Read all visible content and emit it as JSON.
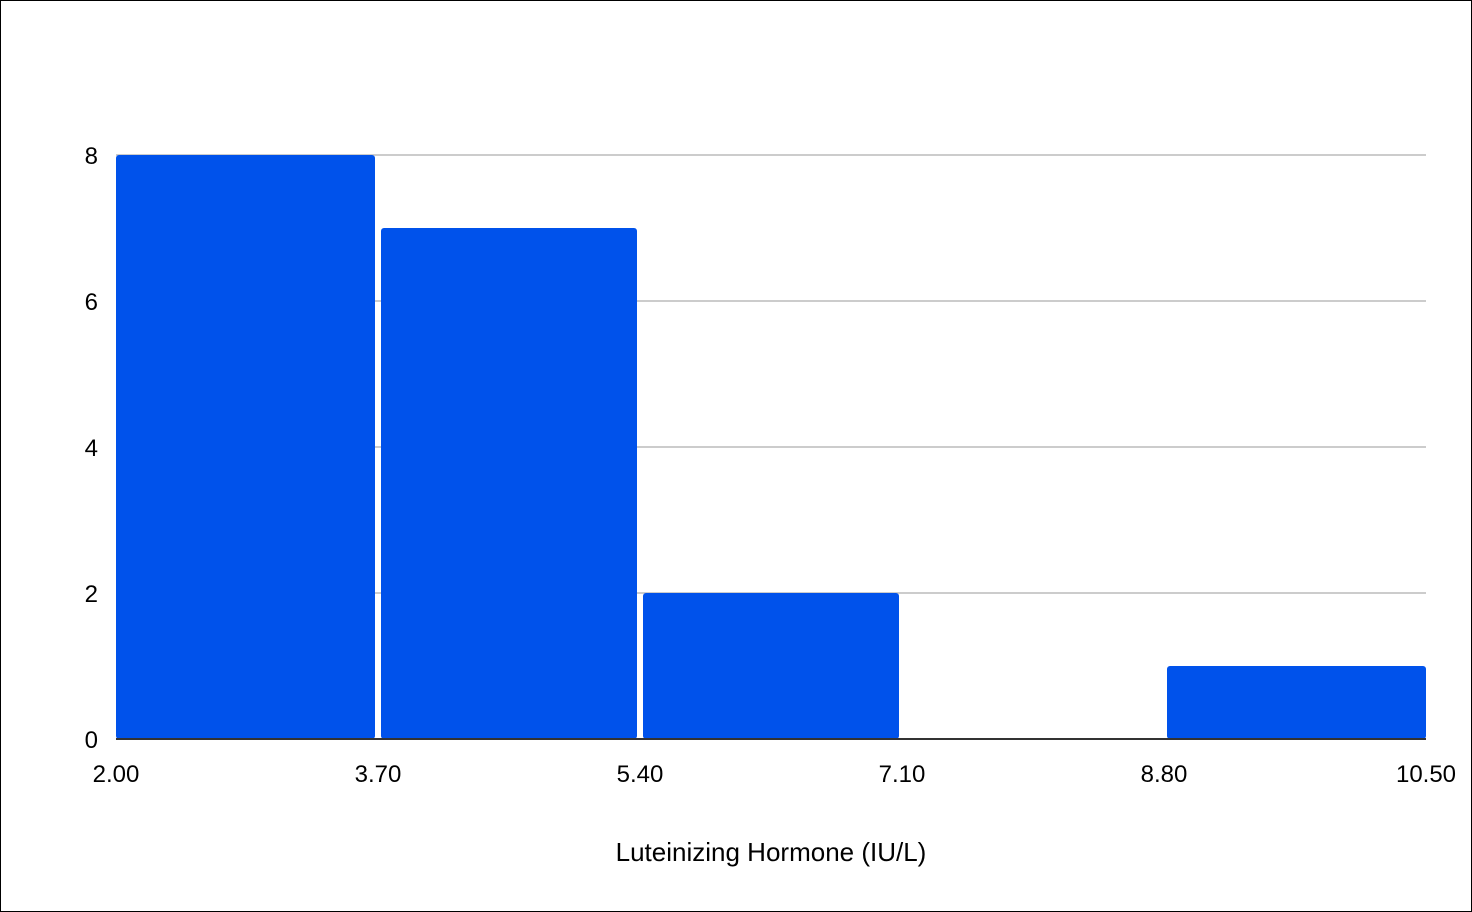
{
  "chart_data": {
    "type": "bar",
    "subtype": "histogram",
    "title": "",
    "xlabel": "Luteinizing Hormone (IU/L)",
    "ylabel": "",
    "bin_edges": [
      2.0,
      3.7,
      5.4,
      7.1,
      8.8,
      10.5
    ],
    "x_tick_labels": [
      "2.00",
      "3.70",
      "5.40",
      "7.10",
      "8.80",
      "10.50"
    ],
    "counts": [
      8,
      7,
      2,
      0,
      1
    ],
    "ylim": [
      0,
      8
    ],
    "y_ticks": [
      0,
      2,
      4,
      6,
      8
    ],
    "y_tick_labels": [
      "0",
      "2",
      "4",
      "6",
      "8"
    ],
    "grid": true,
    "legend": "none",
    "colors": {
      "bar": "#0052EB",
      "grid": "#CCCCCC",
      "axis": "#333333"
    }
  }
}
